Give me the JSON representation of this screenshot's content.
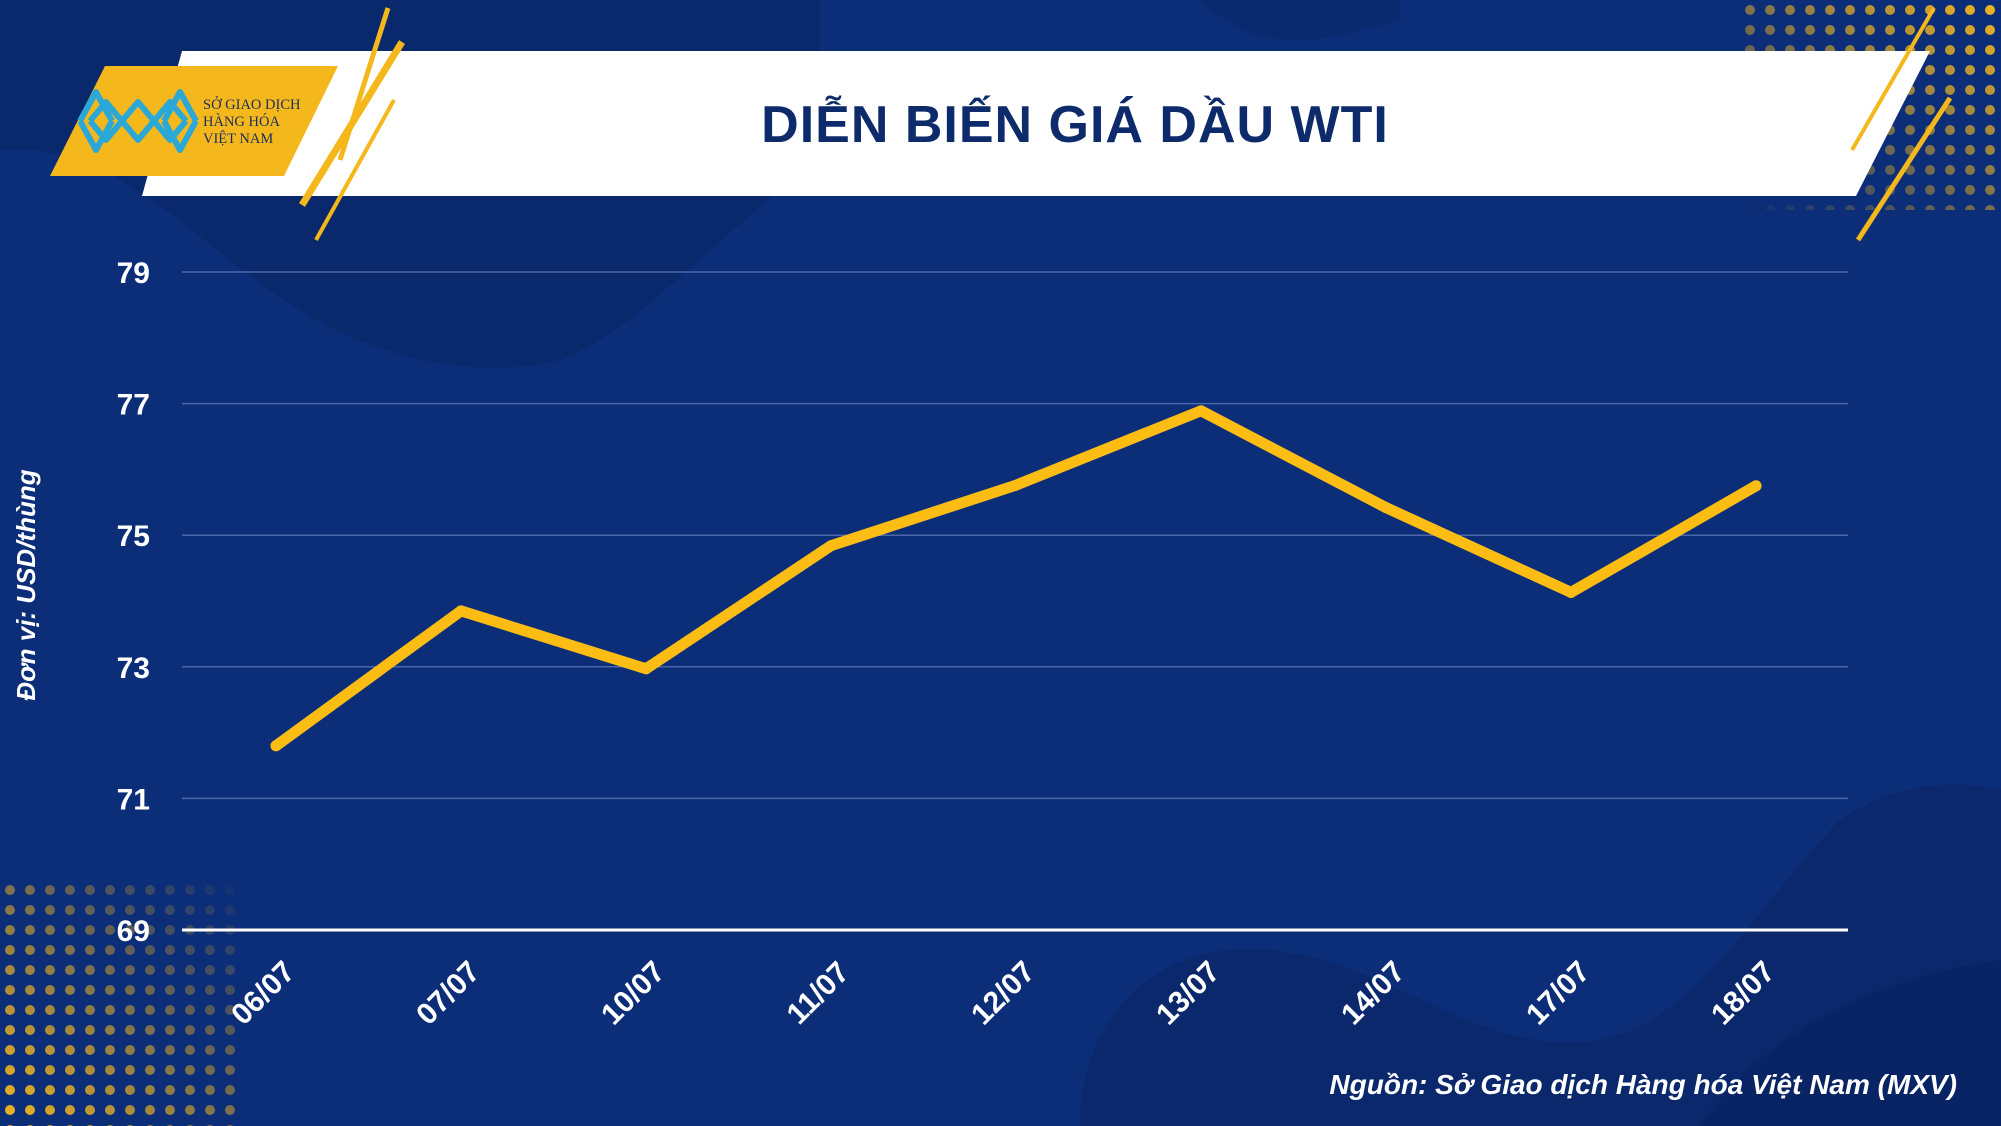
{
  "header": {
    "title": "DIỄN BIẾN GIÁ DẦU WTI",
    "logo_lines": [
      "SỞ GIAO DỊCH",
      "HÀNG HÓA",
      "VIỆT NAM"
    ]
  },
  "colors": {
    "background": "#0c2d78",
    "line": "#fbbd14",
    "accent": "#f5b81c",
    "title_text": "#0d2a6a",
    "grid": "#4a68a8"
  },
  "chart_data": {
    "type": "line",
    "title": "DIỄN BIẾN GIÁ DẦU WTI",
    "xlabel": "",
    "ylabel": "Đơn vị: USD/thùng",
    "categories": [
      "06/07",
      "07/07",
      "10/07",
      "11/07",
      "12/07",
      "13/07",
      "14/07",
      "17/07",
      "18/07"
    ],
    "series": [
      {
        "values": [
          71.8,
          73.85,
          72.97,
          74.84,
          75.76,
          76.89,
          75.42,
          74.13,
          75.75
        ]
      }
    ],
    "ylim": [
      69,
      79
    ],
    "yticks": [
      69,
      71,
      73,
      75,
      77,
      79
    ],
    "grid": true,
    "legend": "none"
  },
  "footer": {
    "source": "Nguồn: Sở Giao dịch Hàng hóa Việt Nam (MXV)"
  }
}
